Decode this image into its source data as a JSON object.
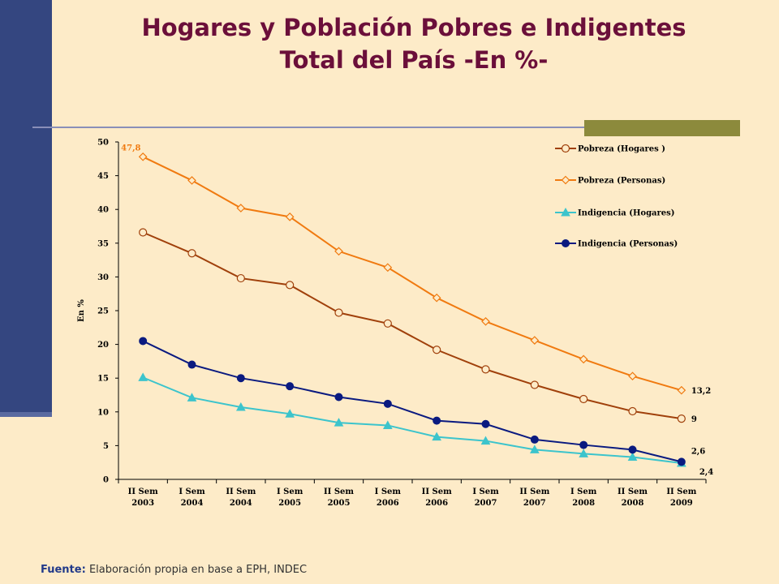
{
  "slide": {
    "title_line1": "Hogares y Población Pobres e Indigentes",
    "title_line2": "Total del País -En %-",
    "source_label": "Fuente:",
    "source_text": "Elaboración propia en base a EPH, INDEC"
  },
  "colors": {
    "background": "#fdebc8",
    "title": "#6b0f3a",
    "sidebar": "#344680"
  },
  "chart_data": {
    "type": "line",
    "ylabel": "En %",
    "xlabel": "",
    "ylim": [
      0,
      50
    ],
    "yticks": [
      0,
      5,
      10,
      15,
      20,
      25,
      30,
      35,
      40,
      45,
      50
    ],
    "categories": [
      [
        "II Sem",
        "2003"
      ],
      [
        "I Sem",
        "2004"
      ],
      [
        "II Sem",
        "2004"
      ],
      [
        "I Sem",
        "2005"
      ],
      [
        "II Sem",
        "2005"
      ],
      [
        "I Sem",
        "2006"
      ],
      [
        "II Sem",
        "2006"
      ],
      [
        "I Sem",
        "2007"
      ],
      [
        "II Sem",
        "2007"
      ],
      [
        "I Sem",
        "2008"
      ],
      [
        "II Sem",
        "2008"
      ],
      [
        "II Sem",
        "2009"
      ]
    ],
    "legend_position": "top-right",
    "series": [
      {
        "name": "Pobreza (Hogares )",
        "color": "#a0400b",
        "marker": "circle-open",
        "values": [
          36.6,
          33.5,
          29.8,
          28.8,
          24.7,
          23.1,
          19.2,
          16.3,
          14.0,
          11.9,
          10.1,
          9.0
        ]
      },
      {
        "name": "Pobreza (Personas)",
        "color": "#f07a10",
        "marker": "diamond-open",
        "values": [
          47.8,
          44.3,
          40.2,
          38.9,
          33.8,
          31.4,
          26.9,
          23.4,
          20.6,
          17.8,
          15.3,
          13.2
        ]
      },
      {
        "name": "Indigencia (Hogares)",
        "color": "#3cc4cc",
        "marker": "triangle",
        "values": [
          15.1,
          12.1,
          10.7,
          9.7,
          8.4,
          8.0,
          6.3,
          5.7,
          4.4,
          3.8,
          3.3,
          2.4
        ]
      },
      {
        "name": "Indigencia (Personas)",
        "color": "#0a1a80",
        "marker": "circle",
        "values": [
          20.5,
          17.0,
          15.0,
          13.8,
          12.2,
          11.2,
          8.7,
          8.2,
          5.9,
          5.1,
          4.4,
          2.6
        ]
      }
    ],
    "data_labels": [
      {
        "series": 1,
        "point": 0,
        "text": "47,8"
      },
      {
        "series": 1,
        "point": 11,
        "text": "13,2"
      },
      {
        "series": 0,
        "point": 11,
        "text": "9"
      },
      {
        "series": 3,
        "point": 11,
        "text": "2,6"
      },
      {
        "series": 2,
        "point": 11,
        "text": "2,4"
      }
    ]
  }
}
